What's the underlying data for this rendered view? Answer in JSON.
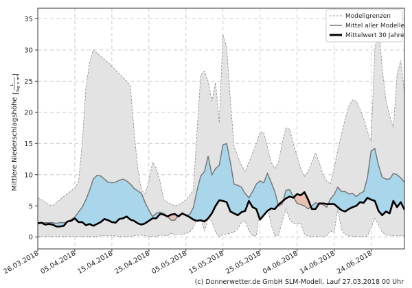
{
  "chart_data": {
    "type": "line",
    "ylabel": "Mittlere Niederschlagshöhe",
    "ylabel_unit_num": "L",
    "ylabel_unit_den": "Tag × m²",
    "ylim": [
      -1.9,
      36.7
    ],
    "yticks": [
      "0",
      "5",
      "10",
      "15",
      "20",
      "25",
      "30",
      "35"
    ],
    "xticks": [
      "26.03.2018",
      "05.04.2018",
      "15.04.2018",
      "25.04.2018",
      "05.05.2018",
      "15.05.2018",
      "25.05.2018",
      "04.06.2018",
      "14.06.2018",
      "24.06.2018"
    ],
    "grid": true,
    "legend_position": "top-right",
    "colors": {
      "band": "#e3e3e3",
      "band_edge": "#888888",
      "model_mean": "#777777",
      "climatology": "#000000",
      "above": "#a9d6ea",
      "below": "#e8c0b4",
      "grid": "#c8c8c8"
    },
    "dates": [
      "26.03.2018",
      "27.03.2018",
      "28.03.2018",
      "29.03.2018",
      "30.03.2018",
      "31.03.2018",
      "01.04.2018",
      "02.04.2018",
      "03.04.2018",
      "04.04.2018",
      "05.04.2018",
      "06.04.2018",
      "07.04.2018",
      "08.04.2018",
      "09.04.2018",
      "10.04.2018",
      "11.04.2018",
      "12.04.2018",
      "13.04.2018",
      "14.04.2018",
      "15.04.2018",
      "16.04.2018",
      "17.04.2018",
      "18.04.2018",
      "19.04.2018",
      "20.04.2018",
      "21.04.2018",
      "22.04.2018",
      "23.04.2018",
      "24.04.2018",
      "25.04.2018",
      "26.04.2018",
      "27.04.2018",
      "28.04.2018",
      "29.04.2018",
      "30.04.2018",
      "01.05.2018",
      "02.05.2018",
      "03.05.2018",
      "04.05.2018",
      "05.05.2018",
      "06.05.2018",
      "07.05.2018",
      "08.05.2018",
      "09.05.2018",
      "10.05.2018",
      "11.05.2018",
      "12.05.2018",
      "13.05.2018",
      "14.05.2018",
      "15.05.2018",
      "16.05.2018",
      "17.05.2018",
      "18.05.2018",
      "19.05.2018",
      "20.05.2018",
      "21.05.2018",
      "22.05.2018",
      "23.05.2018",
      "24.05.2018",
      "25.05.2018",
      "26.05.2018",
      "27.05.2018",
      "28.05.2018",
      "29.05.2018",
      "30.05.2018",
      "31.05.2018",
      "01.06.2018",
      "02.06.2018",
      "03.06.2018",
      "04.06.2018",
      "05.06.2018",
      "06.06.2018",
      "07.06.2018",
      "08.06.2018",
      "09.06.2018",
      "10.06.2018",
      "11.06.2018",
      "12.06.2018",
      "13.06.2018",
      "14.06.2018",
      "15.06.2018",
      "16.06.2018",
      "17.06.2018",
      "18.06.2018",
      "19.06.2018",
      "20.06.2018",
      "21.06.2018",
      "22.06.2018",
      "23.06.2018",
      "24.06.2018",
      "25.06.2018",
      "26.06.2018",
      "27.06.2018",
      "28.06.2018",
      "29.06.2018",
      "30.06.2018",
      "01.07.2018",
      "02.07.2018",
      "03.07.2018"
    ],
    "series": [
      {
        "name": "Modellgrenzen",
        "role": "upper",
        "values": [
          6.3,
          6.0,
          5.6,
          5.2,
          5.0,
          5.5,
          6.0,
          6.5,
          7.0,
          7.4,
          7.9,
          8.8,
          15,
          24,
          28,
          30,
          29.5,
          29,
          28.5,
          28,
          27.4,
          26.8,
          26.2,
          25.6,
          25,
          24.3,
          17,
          11,
          7.5,
          7.0,
          9,
          12,
          11,
          9,
          6,
          5.6,
          5.3,
          5.0,
          5.2,
          5.5,
          6.0,
          6.7,
          7.5,
          17,
          26,
          26.6,
          25,
          21.8,
          24.8,
          18.3,
          32.5,
          30.5,
          22,
          14.5,
          13,
          11.5,
          10.5,
          12,
          13.5,
          15,
          16.8,
          16.8,
          14.5,
          12,
          11,
          12,
          15,
          17.5,
          17.3,
          15,
          13,
          11,
          9.7,
          10.5,
          12,
          13.5,
          12,
          10,
          9,
          8.5,
          11,
          14,
          16.5,
          19,
          21,
          22,
          21.8,
          20.5,
          19,
          17,
          15.3,
          30,
          34.5,
          27,
          22,
          19.5,
          17.5,
          26,
          28.3,
          23
        ]
      },
      {
        "name": "Modellgrenzen",
        "role": "lower",
        "values": [
          0.1,
          0.1,
          0.1,
          0.1,
          0.1,
          0.1,
          0.1,
          0.1,
          0.1,
          0.1,
          0.1,
          0.1,
          0.1,
          0.1,
          0.1,
          0.1,
          0.1,
          0.2,
          0.2,
          0.2,
          0.2,
          0.2,
          0.1,
          0.1,
          0.1,
          0.1,
          0.2,
          0.3,
          0.3,
          0.2,
          0.1,
          0.1,
          0.1,
          0.3,
          0.3,
          0.2,
          0.6,
          0.3,
          0.5,
          0.4,
          0.6,
          0.8,
          1.5,
          3.0,
          2.9,
          1.0,
          3.0,
          2.5,
          0.8,
          0.1,
          0.4,
          0.5,
          0.6,
          0.8,
          1.3,
          2.4,
          2.6,
          1.0,
          0.2,
          0.2,
          4.8,
          5.0,
          4.8,
          2.0,
          0.2,
          0.3,
          2.5,
          4.5,
          2.8,
          2.2,
          2.1,
          2.2,
          0.5,
          0.1,
          0.1,
          0.1,
          0.1,
          0.1,
          0.2,
          1.0,
          0.7,
          4.5,
          1.2,
          0.4,
          0.2,
          0.1,
          0.1,
          0.1,
          0.1,
          0.2,
          1.5,
          3.0,
          2.0,
          0.8,
          0.3,
          0.3,
          0.2,
          0.2,
          0.2,
          0.2
        ]
      },
      {
        "name": "Mittel aller Modelle",
        "role": "model_mean",
        "values": [
          2.3,
          2.3,
          2.3,
          2.3,
          2.3,
          2.2,
          2.3,
          2.3,
          2.4,
          2.8,
          3.2,
          4.0,
          4.8,
          6.0,
          7.5,
          9.3,
          9.9,
          9.8,
          9.3,
          8.8,
          8.7,
          8.8,
          9.1,
          9.3,
          9.0,
          8.5,
          7.8,
          7.4,
          7.0,
          5.5,
          4.3,
          3.3,
          3.8,
          4.0,
          3.8,
          3.3,
          2.7,
          2.7,
          3.5,
          3.7,
          3.5,
          3.6,
          4.7,
          7.5,
          9.8,
          10.5,
          13,
          10,
          11,
          11.5,
          14.8,
          15,
          12,
          8.5,
          8.3,
          8.0,
          7.0,
          6.3,
          7.3,
          8.5,
          9.0,
          8.7,
          10.2,
          8.8,
          7.3,
          5.0,
          5.3,
          7.5,
          7.6,
          6.5,
          5.4,
          5.2,
          5.0,
          4.5,
          5.0,
          5.5,
          5.3,
          5.2,
          4.8,
          6.1,
          6.8,
          8.0,
          7.3,
          7.3,
          6.9,
          7.0,
          6.5,
          7.0,
          7.3,
          9.5,
          13.8,
          14.2,
          11.5,
          9.6,
          9.3,
          9.3,
          10.2,
          10.0,
          9.5,
          8.8
        ]
      },
      {
        "name": "Mittelwert 30 Jahre",
        "role": "climatology",
        "values": [
          2.2,
          2.3,
          2.0,
          2.1,
          2.0,
          1.7,
          1.7,
          1.8,
          2.5,
          2.6,
          3.0,
          2.4,
          2.4,
          1.9,
          2.1,
          1.8,
          2.1,
          2.4,
          2.9,
          2.7,
          2.4,
          2.3,
          2.9,
          3.0,
          3.3,
          2.8,
          2.6,
          2.2,
          2.0,
          2.2,
          2.6,
          3.0,
          3.0,
          3.7,
          3.6,
          3.3,
          3.6,
          3.7,
          3.3,
          3.8,
          3.5,
          3.2,
          2.8,
          2.6,
          2.7,
          2.5,
          3.0,
          3.8,
          5.0,
          5.9,
          5.8,
          5.6,
          4.1,
          3.8,
          3.5,
          4.0,
          4.2,
          5.8,
          4.8,
          4.5,
          2.8,
          3.5,
          4.2,
          4.6,
          4.5,
          5.2,
          5.7,
          6.2,
          6.5,
          6.3,
          6.9,
          6.7,
          7.2,
          6.0,
          4.5,
          4.5,
          5.4,
          5.4,
          5.3,
          5.3,
          5.3,
          4.8,
          4.3,
          4.1,
          4.5,
          4.8,
          5.0,
          5.6,
          5.5,
          6.3,
          6.0,
          5.8,
          4.2,
          3.5,
          4.1,
          3.8,
          5.8,
          4.8,
          5.6,
          4.4
        ]
      }
    ]
  },
  "legend": {
    "items": [
      "Modellgrenzen",
      "Mittel aller Modelle",
      "Mittelwert 30 Jahre"
    ]
  },
  "footer": {
    "credit": "(c) Donnerwetter.de GmbH SLM-Modell, Lauf 27.03.2018 00 Uhr"
  }
}
